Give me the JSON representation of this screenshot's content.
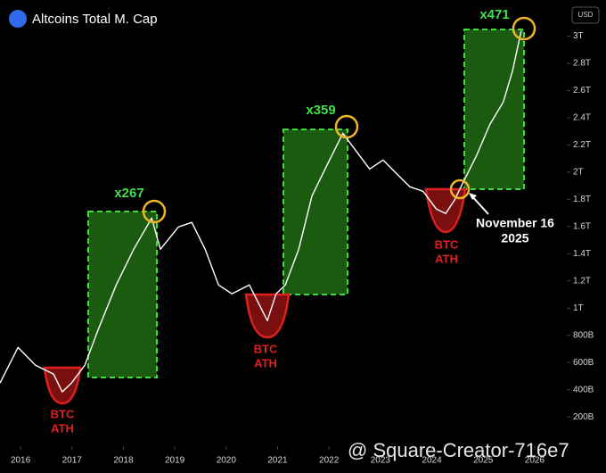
{
  "chart_data": {
    "type": "line",
    "title": "Altcoins Total M. Cap",
    "currency": "USD",
    "x": [
      2015.6,
      2015.95,
      2016.29,
      2016.64,
      2016.81,
      2016.99,
      2017.25,
      2017.51,
      2017.86,
      2018.2,
      2018.55,
      2018.72,
      2019.07,
      2019.33,
      2019.59,
      2019.85,
      2020.11,
      2020.45,
      2020.8,
      2020.97,
      2021.15,
      2021.41,
      2021.67,
      2022.01,
      2022.27,
      2022.53,
      2022.79,
      2023.05,
      2023.31,
      2023.57,
      2023.83,
      2024.09,
      2024.27,
      2024.44,
      2024.61,
      2024.87,
      2025.13,
      2025.39,
      2025.57,
      2025.74
    ],
    "series": [
      {
        "color": "#ffffff",
        "values": [
          449,
          711,
          580,
          515,
          384,
          449,
          580,
          843,
          1170,
          1433,
          1662,
          1433,
          1597,
          1630,
          1433,
          1170,
          1105,
          1170,
          908,
          1105,
          1170,
          1433,
          1826,
          2089,
          2285,
          2154,
          2023,
          2089,
          1990,
          1892,
          1859,
          1728,
          1695,
          1793,
          1925,
          2121,
          2351,
          2515,
          2744,
          3039
        ]
      }
    ],
    "xlim": [
      2015.6,
      2026.4
    ],
    "xticks": [
      2016,
      2017,
      2018,
      2019,
      2020,
      2021,
      2022,
      2023,
      2024,
      2025,
      2026
    ],
    "ylim": [
      50,
      3200
    ],
    "yticks": [
      {
        "value": 200,
        "label": "200B"
      },
      {
        "value": 400,
        "label": "400B"
      },
      {
        "value": 600,
        "label": "600B"
      },
      {
        "value": 800,
        "label": "800B"
      },
      {
        "value": 1000,
        "label": "1T"
      },
      {
        "value": 1200,
        "label": "1.2T"
      },
      {
        "value": 1400,
        "label": "1.4T"
      },
      {
        "value": 1600,
        "label": "1.6T"
      },
      {
        "value": 1800,
        "label": "1.8T"
      },
      {
        "value": 2000,
        "label": "2T"
      },
      {
        "value": 2200,
        "label": "2.2T"
      },
      {
        "value": 2400,
        "label": "2.4T"
      },
      {
        "value": 2600,
        "label": "2.6T"
      },
      {
        "value": 2800,
        "label": "2.8T"
      },
      {
        "value": 3000,
        "label": "3T"
      }
    ],
    "grid": false,
    "annotations": {
      "gains": [
        "x267",
        "x359",
        "x471"
      ],
      "btc_ath": [
        [
          "BTC",
          "ATH"
        ],
        [
          "BTC",
          "ATH"
        ],
        [
          "BTC",
          "ATH"
        ]
      ],
      "date_note": [
        "November 16",
        "2025"
      ]
    },
    "watermark": "@ Square-Creator-716e7"
  }
}
